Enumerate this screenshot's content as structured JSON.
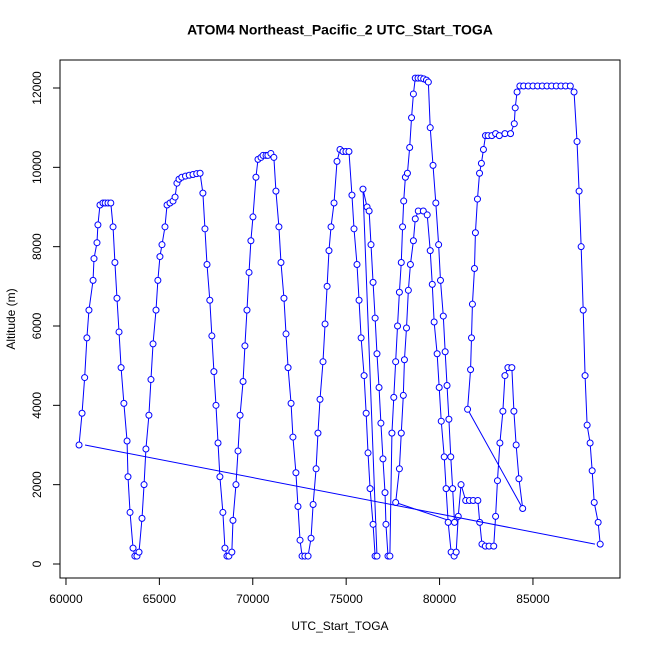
{
  "chart_data": {
    "type": "line",
    "title": "ATOM4 Northeast_Pacific_2 UTC_Start_TOGA",
    "xlabel": "UTC_Start_TOGA",
    "ylabel": "Altitude (m)",
    "xlim": [
      59680,
      89660
    ],
    "ylim": [
      -353,
      12706
    ],
    "xticks": [
      60000,
      65000,
      70000,
      75000,
      80000,
      85000
    ],
    "yticks": [
      0,
      2000,
      4000,
      6000,
      8000,
      10000,
      12000
    ],
    "grid": false,
    "series": [
      {
        "color": "#0000ff",
        "markers": true,
        "x": [
          60700,
          60860,
          61000,
          61120,
          61230,
          61450,
          61500,
          61660,
          61710,
          61820,
          61980,
          62100,
          62250,
          62400,
          62520,
          62620,
          62730,
          62840,
          62950,
          63100,
          63270,
          63320,
          63430,
          63590,
          63690,
          63800,
          63910,
          64070,
          64180,
          64280,
          64440,
          64550,
          64660,
          64820,
          64920,
          65030,
          65140,
          65300,
          65410,
          65570,
          65730,
          65840,
          65940,
          66050,
          66200,
          66400,
          66600,
          66800,
          67000,
          67180,
          67330,
          67440,
          67550,
          67700,
          67810,
          67920,
          68030,
          68140,
          68240,
          68400,
          68510,
          68620,
          68720,
          68880,
          68940,
          69100,
          69210,
          69320,
          69480,
          69580,
          69690,
          69800,
          69900,
          70010,
          70170,
          70280,
          70440,
          70550,
          70710,
          70810,
          70970,
          71130,
          71240,
          71400,
          71510,
          71670,
          71780,
          71890,
          72050,
          72150,
          72310,
          72420,
          72530,
          72640,
          72790,
          72960,
          73120,
          73230,
          73390,
          73490,
          73600,
          73760,
          73870,
          73980,
          74080,
          74190,
          74350,
          74510,
          74670,
          74830,
          74990,
          75150,
          75310,
          75420,
          75580,
          75690,
          75800,
          75960,
          76070,
          76170,
          76280,
          76440,
          76550,
          76650,
          75900,
          76120,
          76230,
          76330,
          76440,
          76550,
          76650,
          76760,
          76860,
          76970,
          77080,
          77130,
          77240,
          77340,
          77450,
          77550,
          77650,
          77750,
          77850,
          77950,
          78020,
          78080,
          78170,
          78280,
          78400,
          78500,
          78600,
          78700,
          78850,
          79000,
          79150,
          79300,
          79400,
          79500,
          79650,
          79800,
          79950,
          80050,
          80200,
          80300,
          80400,
          80500,
          80600,
          80700,
          80800,
          77650,
          77850,
          77950,
          78060,
          78120,
          78230,
          78330,
          78440,
          78600,
          78700,
          78860,
          79130,
          79340,
          79500,
          79610,
          79710,
          79870,
          79980,
          80090,
          80250,
          80350,
          80460,
          80620,
          80780,
          80890,
          81000,
          81150,
          81400,
          81600,
          81800,
          82050,
          82150,
          82270,
          82450,
          82650,
          82900,
          83000,
          83100,
          83230,
          83390,
          83500,
          83660,
          83870,
          83980,
          84100,
          84250,
          84450,
          81500,
          81660,
          81710,
          81760,
          81870,
          81920,
          82030,
          82140,
          82240,
          82350,
          82460,
          82600,
          82800,
          83000,
          83200,
          83500,
          83800,
          84000,
          84050,
          84150,
          84300,
          84500,
          84750,
          85000,
          85250,
          85500,
          85750,
          86000,
          86250,
          86500,
          86750,
          87000,
          87200,
          87360,
          87470,
          87580,
          87690,
          87790,
          87900,
          88060,
          88170,
          88280,
          88490,
          88600
        ],
        "values": [
          3000,
          3800,
          4700,
          5700,
          6400,
          7150,
          7700,
          8100,
          8550,
          9050,
          9100,
          9100,
          9100,
          9100,
          8500,
          7600,
          6700,
          5850,
          4950,
          4050,
          3100,
          2200,
          1300,
          400,
          200,
          200,
          300,
          1150,
          2000,
          2900,
          3750,
          4650,
          5550,
          6400,
          7150,
          7750,
          8050,
          8500,
          9050,
          9100,
          9150,
          9250,
          9600,
          9700,
          9750,
          9780,
          9800,
          9820,
          9840,
          9850,
          9350,
          8450,
          7550,
          6650,
          5750,
          4850,
          4000,
          3050,
          2200,
          1300,
          400,
          200,
          200,
          300,
          1100,
          2000,
          2850,
          3750,
          4600,
          5500,
          6400,
          7350,
          8150,
          8750,
          9750,
          10200,
          10250,
          10300,
          10300,
          10300,
          10350,
          10250,
          9400,
          8500,
          7600,
          6700,
          5800,
          4950,
          4050,
          3200,
          2300,
          1450,
          600,
          200,
          200,
          200,
          650,
          1500,
          2400,
          3300,
          4150,
          5100,
          6050,
          7000,
          7900,
          8500,
          9100,
          10150,
          10450,
          10400,
          10400,
          10400,
          9300,
          8450,
          7550,
          6650,
          5700,
          4750,
          3800,
          2800,
          1900,
          1000,
          200,
          200,
          9450,
          9000,
          8900,
          8050,
          7100,
          6200,
          5300,
          4450,
          3550,
          2650,
          1800,
          1000,
          200,
          200,
          3300,
          4200,
          5100,
          6000,
          6850,
          7600,
          8500,
          9150,
          9750,
          9850,
          10500,
          11250,
          11850,
          12250,
          12250,
          12250,
          12230,
          12200,
          12150,
          11000,
          10050,
          9100,
          8050,
          7150,
          6250,
          5350,
          4500,
          3650,
          2700,
          1900,
          1050,
          1550,
          2400,
          3300,
          4250,
          5150,
          5950,
          6900,
          7550,
          8150,
          8700,
          8900,
          8900,
          8800,
          7900,
          7050,
          6100,
          5300,
          4450,
          3600,
          2700,
          1900,
          1050,
          300,
          200,
          300,
          1200,
          2000,
          1600,
          1600,
          1600,
          1600,
          1050,
          500,
          450,
          450,
          450,
          1200,
          2100,
          3050,
          3850,
          4750,
          4950,
          4950,
          3850,
          3000,
          2150,
          1400,
          3900,
          4900,
          5700,
          6550,
          7450,
          8350,
          9200,
          9850,
          10100,
          10450,
          10800,
          10800,
          10800,
          10850,
          10800,
          10850,
          10850,
          11100,
          11500,
          11900,
          12050,
          12050,
          12050,
          12050,
          12050,
          12050,
          12050,
          12050,
          12050,
          12050,
          12050,
          12050,
          11900,
          10650,
          9400,
          8000,
          6400,
          4750,
          3500,
          3050,
          2350,
          1550,
          1050,
          500
        ]
      },
      {
        "color": "#0000ff",
        "markers": false,
        "x": [
          61020,
          88320
        ],
        "values": [
          3000,
          500
        ]
      }
    ]
  }
}
